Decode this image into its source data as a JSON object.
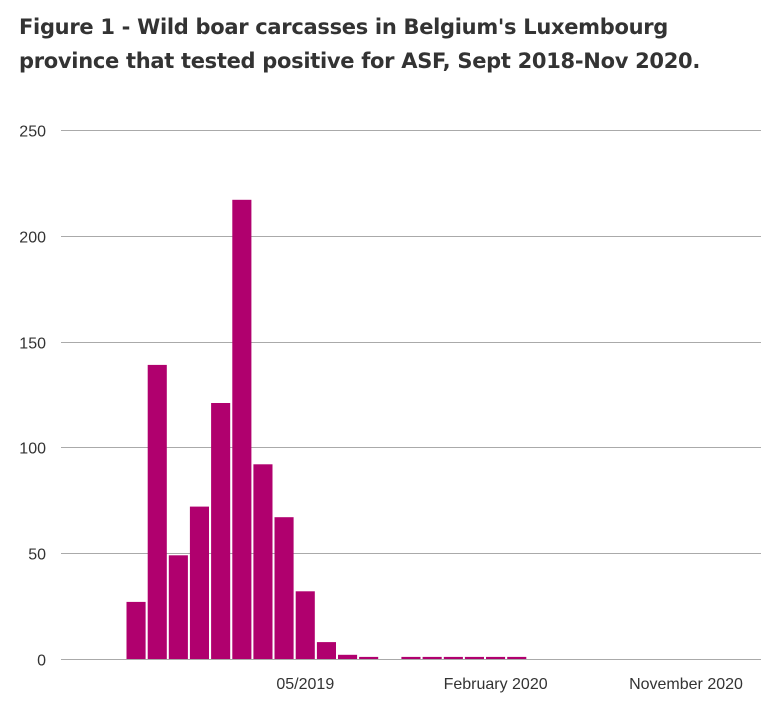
{
  "chart_data": {
    "type": "bar",
    "title": "Figure 1 - Wild boar carcasses in Belgium's Luxembourg province that tested positive for ASF, Sept 2018-Nov 2020.",
    "xlabel": "",
    "ylabel": "",
    "ylim": [
      0,
      250
    ],
    "yticks": [
      0,
      50,
      100,
      150,
      200,
      250
    ],
    "grid": true,
    "bar_color": "#b0006e",
    "x_axis_month_range": [
      "2018-07",
      "2020-12"
    ],
    "categories": [
      "2018-09",
      "2018-10",
      "2018-11",
      "2018-12",
      "2019-01",
      "2019-02",
      "2019-03",
      "2019-04",
      "2019-05",
      "2019-06",
      "2019-07",
      "2019-08",
      "2019-09",
      "2019-10",
      "2019-11",
      "2019-12",
      "2020-01",
      "2020-02",
      "2020-03",
      "2020-04",
      "2020-05",
      "2020-06",
      "2020-07",
      "2020-08",
      "2020-09",
      "2020-10",
      "2020-11"
    ],
    "values": [
      27,
      139,
      49,
      72,
      121,
      217,
      92,
      67,
      32,
      8,
      2,
      1,
      0,
      1,
      1,
      1,
      1,
      1,
      1,
      0,
      0,
      0,
      0,
      0,
      0,
      0,
      0
    ],
    "xticks": [
      {
        "month": "2019-05",
        "label": "05/2019"
      },
      {
        "month": "2020-02",
        "label": "February 2020"
      },
      {
        "month": "2020-11",
        "label": "November 2020"
      }
    ]
  }
}
